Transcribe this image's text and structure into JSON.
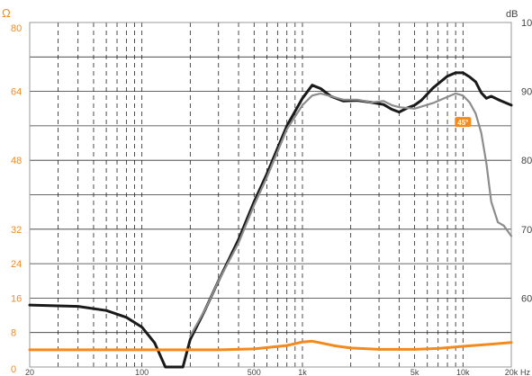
{
  "chart_data": {
    "type": "line",
    "x_scale": "log",
    "xlim": [
      20,
      20000
    ],
    "x_unit": "Hz",
    "x_ticks": [
      {
        "value": 20,
        "label": "20"
      },
      {
        "value": 100,
        "label": "100"
      },
      {
        "value": 500,
        "label": "500"
      },
      {
        "value": 1000,
        "label": "1k"
      },
      {
        "value": 5000,
        "label": "5k"
      },
      {
        "value": 10000,
        "label": "10k"
      },
      {
        "value": 20000,
        "label": "20k"
      }
    ],
    "left_axis": {
      "unit": "Ω",
      "ylim": [
        0,
        80
      ],
      "ticks": [
        "0",
        "8",
        "16",
        "24",
        "32",
        "48",
        "64",
        "80"
      ],
      "color": "#f28a1e"
    },
    "right_axis": {
      "unit": "dB",
      "ylim": [
        50,
        100
      ],
      "ticks": [
        "60",
        "70",
        "80",
        "90",
        "100"
      ]
    },
    "grid": true,
    "series": [
      {
        "axis": "right",
        "color": "#1a1a1a",
        "points": [
          [
            20,
            59.0
          ],
          [
            40,
            58.8
          ],
          [
            60,
            58.2
          ],
          [
            80,
            57.2
          ],
          [
            100,
            55.8
          ],
          [
            120,
            53.5
          ],
          [
            140,
            50.0
          ],
          [
            180,
            50.0
          ],
          [
            200,
            54.0
          ],
          [
            250,
            58.5
          ],
          [
            300,
            62.5
          ],
          [
            400,
            68.5
          ],
          [
            500,
            74.0
          ],
          [
            600,
            78.0
          ],
          [
            800,
            85.0
          ],
          [
            1000,
            89.0
          ],
          [
            1150,
            90.9
          ],
          [
            1300,
            90.4
          ],
          [
            1500,
            89.3
          ],
          [
            1800,
            88.6
          ],
          [
            2200,
            88.7
          ],
          [
            2700,
            88.4
          ],
          [
            3200,
            88.1
          ],
          [
            3600,
            87.4
          ],
          [
            4000,
            87.0
          ],
          [
            4500,
            87.6
          ],
          [
            5000,
            88.0
          ],
          [
            5500,
            88.7
          ],
          [
            6500,
            90.5
          ],
          [
            8000,
            92.2
          ],
          [
            9000,
            92.7
          ],
          [
            10000,
            92.7
          ],
          [
            11000,
            92.1
          ],
          [
            12000,
            91.4
          ],
          [
            13000,
            89.8
          ],
          [
            14000,
            89.0
          ],
          [
            15000,
            89.3
          ],
          [
            17000,
            88.7
          ],
          [
            20000,
            88.0
          ]
        ]
      },
      {
        "axis": "right",
        "color": "#8c8c8c",
        "points": [
          [
            200,
            54.5
          ],
          [
            250,
            58.5
          ],
          [
            300,
            62.5
          ],
          [
            400,
            68.0
          ],
          [
            500,
            73.5
          ],
          [
            600,
            77.5
          ],
          [
            800,
            84.5
          ],
          [
            1000,
            88.0
          ],
          [
            1150,
            89.4
          ],
          [
            1300,
            89.7
          ],
          [
            1500,
            89.3
          ],
          [
            1800,
            88.8
          ],
          [
            2200,
            88.8
          ],
          [
            2700,
            88.4
          ],
          [
            3200,
            88.6
          ],
          [
            3600,
            88.0
          ],
          [
            4000,
            87.7
          ],
          [
            5000,
            87.5
          ],
          [
            6500,
            88.3
          ],
          [
            8000,
            89.2
          ],
          [
            9000,
            89.7
          ],
          [
            10000,
            89.4
          ],
          [
            11000,
            88.4
          ],
          [
            12000,
            86.8
          ],
          [
            13000,
            84.0
          ],
          [
            14000,
            79.5
          ],
          [
            15000,
            74.0
          ],
          [
            16500,
            71.0
          ],
          [
            18000,
            70.5
          ],
          [
            20000,
            69.0
          ]
        ]
      },
      {
        "axis": "left",
        "color": "#f28a1e",
        "points": [
          [
            20,
            4.0
          ],
          [
            100,
            4.0
          ],
          [
            200,
            4.0
          ],
          [
            300,
            4.0
          ],
          [
            500,
            4.2
          ],
          [
            800,
            5.0
          ],
          [
            1000,
            5.8
          ],
          [
            1150,
            6.0
          ],
          [
            1300,
            5.6
          ],
          [
            1600,
            4.9
          ],
          [
            2000,
            4.4
          ],
          [
            3000,
            4.1
          ],
          [
            5000,
            4.1
          ],
          [
            7000,
            4.3
          ],
          [
            10000,
            4.8
          ],
          [
            15000,
            5.3
          ],
          [
            20000,
            5.7
          ]
        ]
      }
    ],
    "annotations": [
      {
        "text": "45°",
        "x": 10000,
        "y": 85.5,
        "axis": "right",
        "color": "#f28a1e"
      }
    ]
  }
}
